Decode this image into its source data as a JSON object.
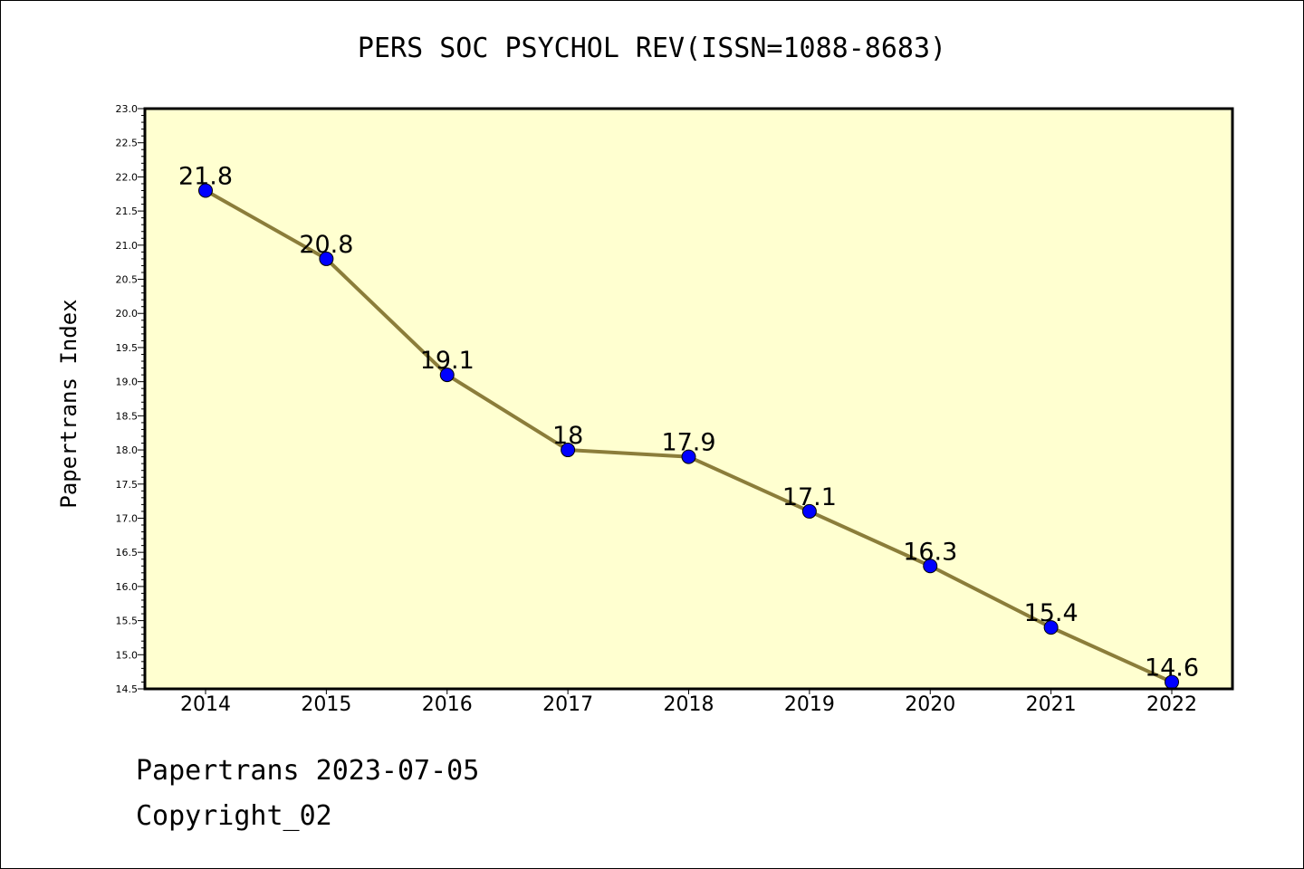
{
  "chart_data": {
    "type": "line",
    "title": "PERS SOC PSYCHOL REV(ISSN=1088-8683)",
    "xlabel": "",
    "ylabel": "Papertrans Index",
    "categories": [
      "2014",
      "2015",
      "2016",
      "2017",
      "2018",
      "2019",
      "2020",
      "2021",
      "2022"
    ],
    "series": [
      {
        "values": [
          21.8,
          20.8,
          19.1,
          18.0,
          17.9,
          17.1,
          16.3,
          15.4,
          14.6
        ],
        "data_labels": [
          "21.8",
          "20.8",
          "19.1",
          "18",
          "17.9",
          "17.1",
          "16.3",
          "15.4",
          "14.6"
        ]
      }
    ],
    "ylim": [
      14.5,
      23.0
    ],
    "yticks": [
      "14.5",
      "15.0",
      "15.5",
      "16.0",
      "16.5",
      "17.0",
      "17.5",
      "18.0",
      "18.5",
      "19.0",
      "19.5",
      "20.0",
      "20.5",
      "21.0",
      "21.5",
      "22.0",
      "22.5",
      "23.0"
    ],
    "grid": false,
    "background_color": "#ffffd0",
    "line_color": "#8b7d3a",
    "marker_color": "#0000ff"
  },
  "footer": {
    "line1": "Papertrans 2023-07-05",
    "line2": "Copyright_02"
  }
}
